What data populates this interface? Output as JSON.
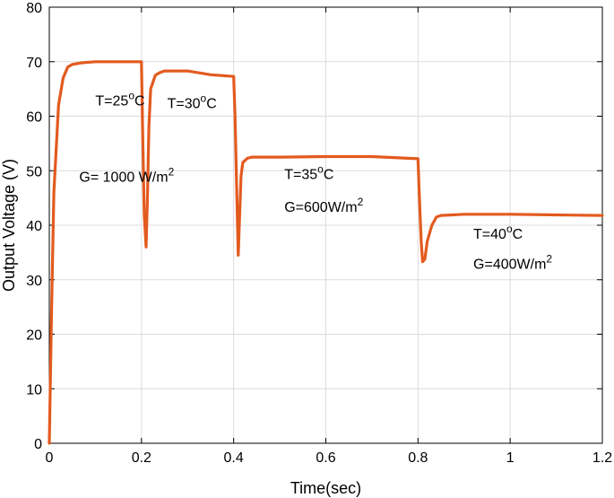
{
  "chart_data": {
    "type": "line",
    "xlabel": "Time(sec)",
    "ylabel": "Output Voltage (V)",
    "xlim": [
      0,
      1.2
    ],
    "ylim": [
      0,
      80
    ],
    "x_ticks": [
      0,
      0.2,
      0.4,
      0.6,
      0.8,
      1,
      1.2
    ],
    "x_tick_labels": [
      "0",
      "0.2",
      "0.4",
      "0.6",
      "0.8",
      "1",
      "1.2"
    ],
    "y_ticks": [
      0,
      10,
      20,
      30,
      40,
      50,
      60,
      70,
      80
    ],
    "y_tick_labels": [
      "0",
      "10",
      "20",
      "30",
      "40",
      "50",
      "60",
      "70",
      "80"
    ],
    "grid": true,
    "series": [
      {
        "color": "#e35a1f",
        "x": [
          0,
          0.005,
          0.01,
          0.02,
          0.03,
          0.04,
          0.05,
          0.07,
          0.1,
          0.15,
          0.2,
          0.203,
          0.206,
          0.21,
          0.213,
          0.216,
          0.22,
          0.23,
          0.24,
          0.25,
          0.3,
          0.35,
          0.4,
          0.403,
          0.407,
          0.41,
          0.413,
          0.416,
          0.42,
          0.43,
          0.44,
          0.5,
          0.6,
          0.7,
          0.8,
          0.803,
          0.807,
          0.81,
          0.815,
          0.82,
          0.83,
          0.84,
          0.85,
          0.9,
          1.0,
          1.1,
          1.2
        ],
        "y": [
          0,
          25,
          46,
          62,
          67,
          69,
          69.5,
          69.8,
          70,
          70,
          70,
          55,
          42,
          36,
          45,
          58,
          65,
          67.5,
          68,
          68.3,
          68.3,
          67.6,
          67.3,
          60,
          45,
          34.5,
          42,
          49,
          51.5,
          52.3,
          52.5,
          52.5,
          52.6,
          52.6,
          52.2,
          45,
          37,
          33.3,
          33.8,
          37,
          40,
          41.5,
          41.8,
          42,
          42,
          41.9,
          41.8
        ]
      }
    ],
    "annotations": [
      {
        "text": "T=25",
        "sup": "o",
        "after": "C",
        "x": 0.1,
        "y": 62
      },
      {
        "text": "T=30",
        "sup": "o",
        "after": "C",
        "x": 0.256,
        "y": 61.5
      },
      {
        "text": "G= 1000 W/m",
        "sup": "2",
        "after": "",
        "x": 0.065,
        "y": 48
      },
      {
        "text": "T=35",
        "sup": "o",
        "after": "C",
        "x": 0.51,
        "y": 48.5
      },
      {
        "text": "G=600W/m",
        "sup": "2",
        "after": "",
        "x": 0.51,
        "y": 42.5
      },
      {
        "text": "T=40",
        "sup": "o",
        "after": "C",
        "x": 0.92,
        "y": 37.5
      },
      {
        "text": "G=400W/m",
        "sup": "2",
        "after": "",
        "x": 0.92,
        "y": 32
      }
    ]
  }
}
